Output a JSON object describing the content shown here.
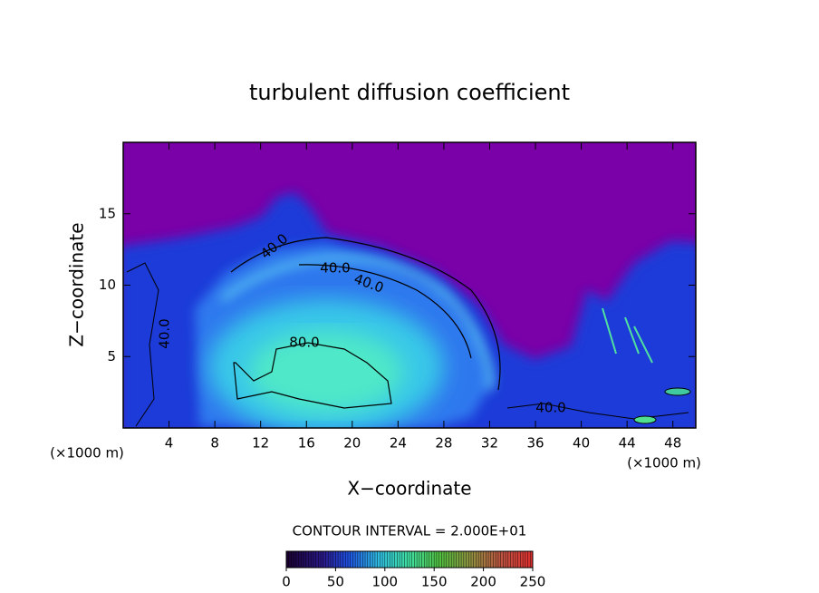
{
  "chart_data": {
    "type": "contour",
    "title": "turbulent diffusion coefficient",
    "x_label": "X−coordinate",
    "y_label": "Z−coordinate",
    "x_unit": "(×1000 m)",
    "y_unit": "(×1000 m)",
    "xlim": [
      0,
      50
    ],
    "ylim": [
      0,
      20
    ],
    "xticks": [
      4,
      8,
      12,
      16,
      20,
      24,
      28,
      32,
      36,
      40,
      44,
      48
    ],
    "yticks": [
      5,
      10,
      15
    ],
    "contour_labels": [
      {
        "value": 40,
        "label": "40.0"
      },
      {
        "value": 40,
        "label": "40.0"
      },
      {
        "value": 40,
        "label": "40.0"
      },
      {
        "value": 40,
        "label": "40.0"
      },
      {
        "value": 80,
        "label": "80.0"
      },
      {
        "value": 40,
        "label": "40.0"
      }
    ],
    "annotation": "CONTOUR INTERVAL = 2.000E+01",
    "colorbar": {
      "lim": [
        0,
        250
      ],
      "ticks": [
        0,
        50,
        100,
        150,
        200,
        250
      ]
    }
  }
}
